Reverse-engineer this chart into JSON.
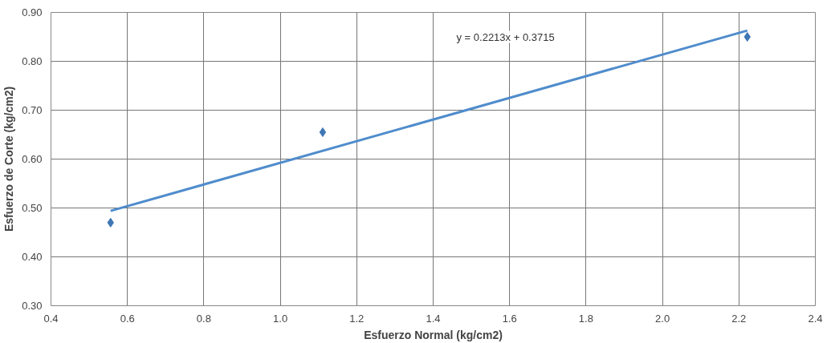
{
  "chart_data": {
    "type": "scatter",
    "xlabel": "Esfuerzo Normal (kg/cm2)",
    "ylabel": "Esfuerzo de Corte (kg/cm2)",
    "series": [
      {
        "color": "#3f77b5",
        "x": [
          0.556,
          1.111,
          2.222
        ],
        "values": [
          0.47,
          0.655,
          0.85
        ],
        "marker": "diamond"
      },
      {
        "type": "line",
        "color": "#4f8ccc",
        "x": [
          0.556,
          2.222
        ],
        "values": [
          0.494,
          0.863
        ],
        "marker": "none",
        "line_style": "solid"
      }
    ],
    "annotations": [
      "y = 0.2213x + 0.3715"
    ],
    "xlim": [
      0.4,
      2.4
    ],
    "xticks": [
      0.4,
      0.6,
      0.8,
      {
        "value": 1.0,
        "label": "1.0"
      },
      1.2,
      1.4,
      1.6,
      1.8,
      {
        "value": 2.0,
        "label": "2.0"
      },
      2.2,
      2.4
    ],
    "ylim": [
      0.3,
      0.9
    ],
    "yticks": [
      {
        "value": 0.3,
        "label": "0.30"
      },
      {
        "value": 0.4,
        "label": "0.40"
      },
      {
        "value": 0.5,
        "label": "0.50"
      },
      {
        "value": 0.6,
        "label": "0.60"
      },
      {
        "value": 0.7,
        "label": "0.70"
      },
      {
        "value": 0.8,
        "label": "0.80"
      },
      {
        "value": 0.9,
        "label": "0.90"
      }
    ],
    "grid": true
  }
}
